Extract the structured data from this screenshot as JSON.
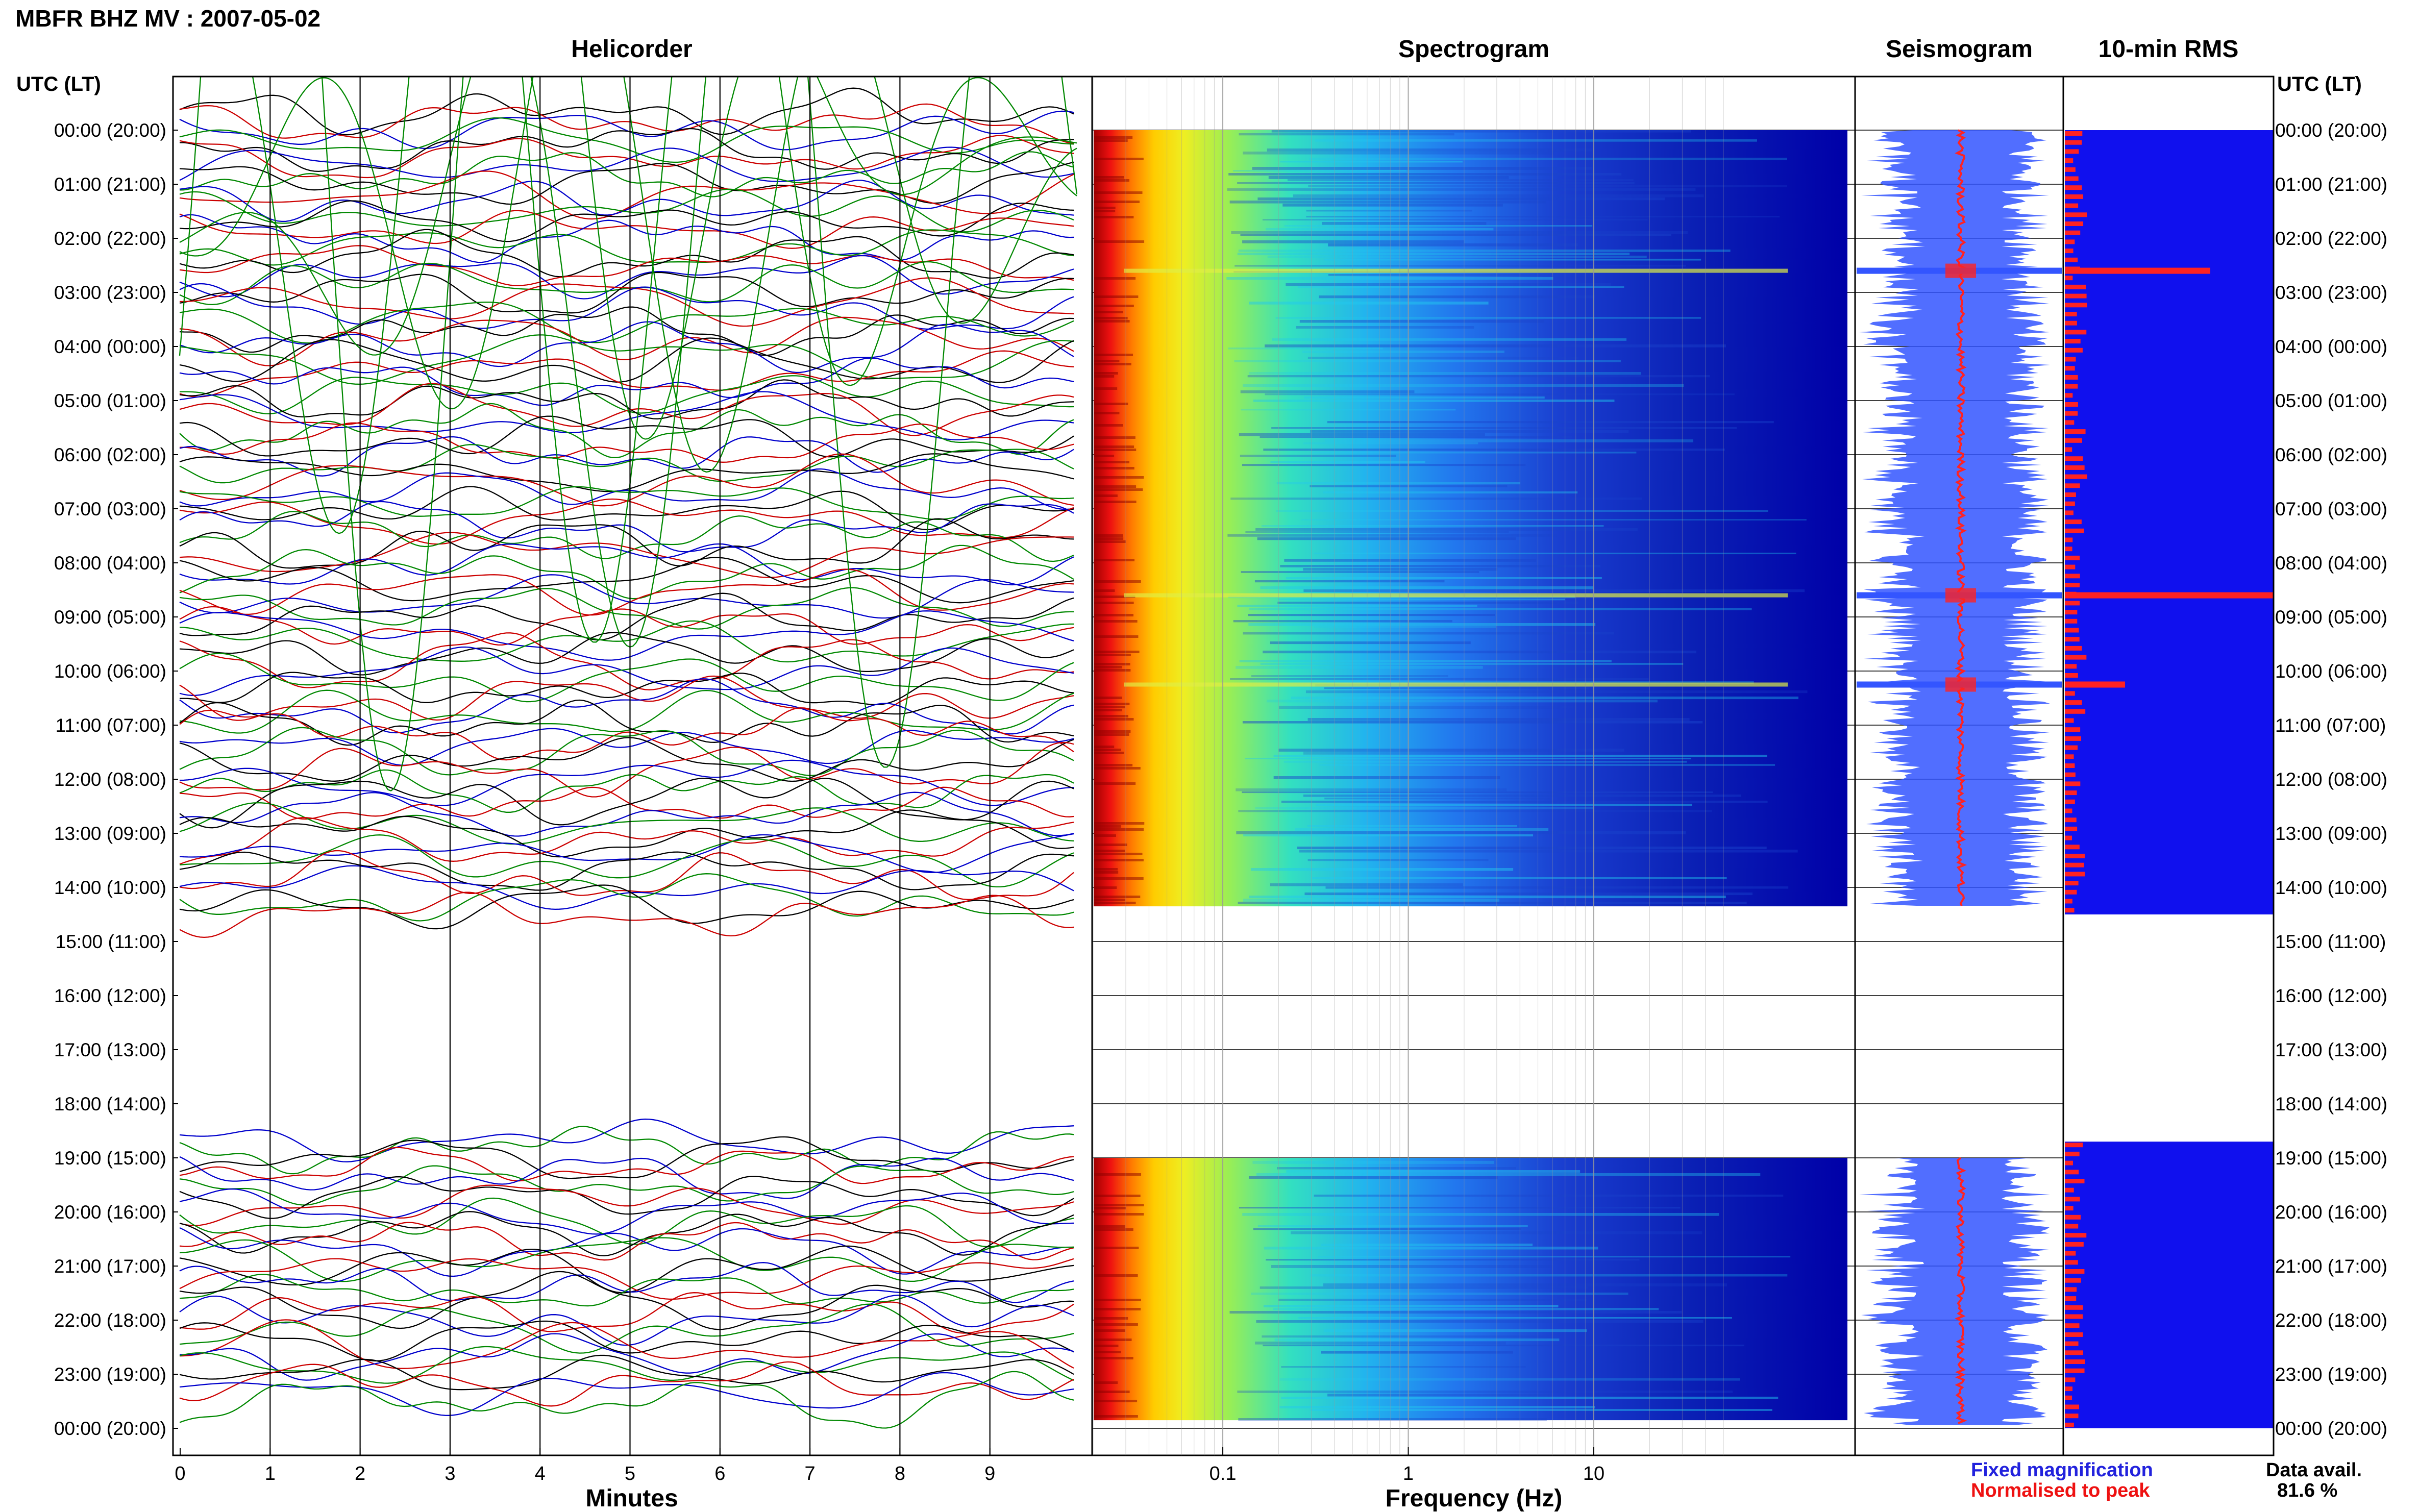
{
  "figure": {
    "title": "MBFR BHZ MV : 2007-05-02",
    "time_axis_label": "UTC (LT)",
    "rows": [
      "00:00 (20:00)",
      "01:00 (21:00)",
      "02:00 (22:00)",
      "03:00 (23:00)",
      "04:00 (00:00)",
      "05:00 (01:00)",
      "06:00 (02:00)",
      "07:00 (03:00)",
      "08:00 (04:00)",
      "09:00 (05:00)",
      "10:00 (06:00)",
      "11:00 (07:00)",
      "12:00 (08:00)",
      "13:00 (09:00)",
      "14:00 (10:00)",
      "15:00 (11:00)",
      "16:00 (12:00)",
      "17:00 (13:00)",
      "18:00 (14:00)",
      "19:00 (15:00)",
      "20:00 (16:00)",
      "21:00 (17:00)",
      "22:00 (18:00)",
      "23:00 (19:00)",
      "00:00 (20:00)"
    ],
    "colors": {
      "trace_cycle": [
        "#000000",
        "#cc0000",
        "#0000cc",
        "#008800"
      ],
      "fixed": "#3355ff",
      "normalised": "#ff2222",
      "rms_bg": "#1010ee"
    }
  },
  "legend": {
    "fixed_magnification": "Fixed magnification",
    "normalised_to_peak": "Normalised to peak"
  },
  "availability": {
    "label": "Data avail.",
    "value": "81.6 %"
  },
  "chart_data": [
    {
      "type": "line",
      "title": "Helicorder",
      "xlabel": "Minutes",
      "xlim": [
        0,
        10
      ],
      "x_ticks": [
        "0",
        "1",
        "2",
        "3",
        "4",
        "5",
        "6",
        "7",
        "8",
        "9"
      ],
      "data_gaps_utc_hours": [
        [
          15.0,
          18.9
        ]
      ],
      "notes": "continuous 10-minute trace lines, one per 10 minutes, colours cycling black/red/blue/green"
    },
    {
      "type": "heatmap",
      "title": "Spectrogram",
      "xlabel": "Frequency (Hz)",
      "x_scale": "log",
      "xlim": [
        0.02,
        50
      ],
      "x_ticks": [
        "0.1",
        "1",
        "10"
      ],
      "data_gaps_utc_hours": [
        [
          14.35,
          19.0
        ]
      ],
      "event_rows_utc_hours": [
        2.6,
        8.6,
        10.25
      ]
    },
    {
      "type": "line",
      "title": "Seismogram",
      "series": [
        {
          "name": "Fixed magnification"
        },
        {
          "name": "Normalised to peak"
        }
      ],
      "data_gaps_utc_hours": [
        [
          14.35,
          19.0
        ]
      ]
    },
    {
      "type": "bar",
      "title": "10-min RMS",
      "orientation": "horizontal",
      "data_gaps_utc_hours": [
        [
          14.5,
          18.7
        ]
      ],
      "peak_rows_utc_hours": [
        2.6,
        8.6,
        10.25
      ]
    }
  ]
}
